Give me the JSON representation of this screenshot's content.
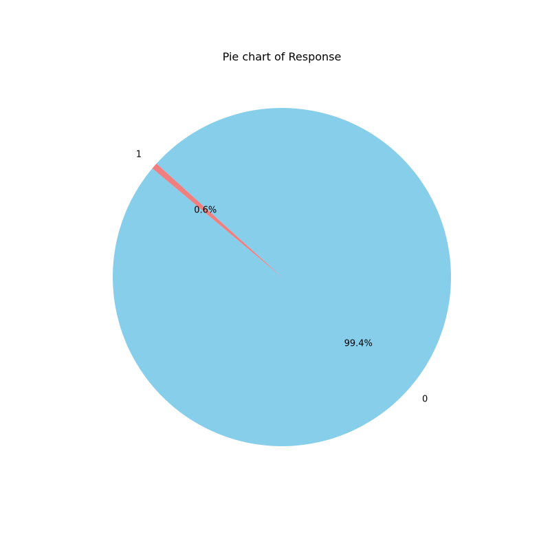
{
  "chart_data": {
    "type": "pie",
    "title": "Pie chart of Response",
    "labels": [
      "0",
      "1"
    ],
    "values": [
      99.4,
      0.6
    ],
    "percent_labels": [
      "99.4%",
      "0.6%"
    ],
    "colors": [
      "#87ceeb",
      "#f08080"
    ],
    "start_angle_deg": 140,
    "direction": "counterclockwise",
    "legend": "none"
  }
}
